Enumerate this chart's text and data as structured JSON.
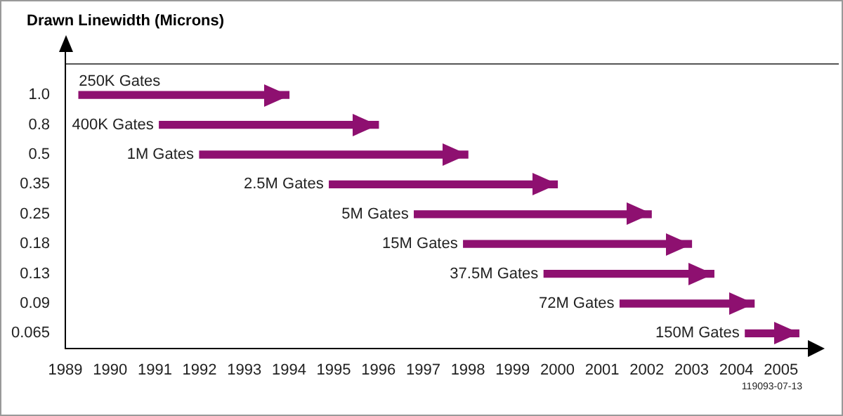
{
  "chart_data": {
    "type": "bar",
    "orientation": "horizontal",
    "ylabel": "Drawn Linewidth (Microns)",
    "categories": [
      "1.0",
      "0.8",
      "0.5",
      "0.35",
      "0.25",
      "0.18",
      "0.13",
      "0.09",
      "0.065"
    ],
    "base": [
      1989.3,
      1991.1,
      1992.0,
      1994.9,
      1996.8,
      1997.9,
      1999.7,
      2001.4,
      2004.2
    ],
    "values": [
      4.7,
      4.9,
      6.0,
      5.1,
      5.3,
      5.1,
      3.8,
      3.0,
      1.2
    ],
    "color": "#8e1070",
    "xlim": [
      1989,
      2005.6
    ],
    "xticks": [
      1989,
      1990,
      1991,
      1992,
      1993,
      1994,
      1995,
      1996,
      1997,
      1998,
      1999,
      2000,
      2001,
      2002,
      2003,
      2004,
      2005
    ],
    "grid": false,
    "legend": false,
    "annotations": [
      {
        "text": "250K Gates",
        "x": 1989.3,
        "y": "1.0"
      },
      {
        "text": "400K Gates",
        "x": 1991.1,
        "y": "0.8"
      },
      {
        "text": "1M Gates",
        "x": 1992.0,
        "y": "0.5"
      },
      {
        "text": "2.5M Gates",
        "x": 1994.9,
        "y": "0.35"
      },
      {
        "text": "5M Gates",
        "x": 1996.8,
        "y": "0.25"
      },
      {
        "text": "15M Gates",
        "x": 1997.9,
        "y": "0.18"
      },
      {
        "text": "37.5M Gates",
        "x": 1999.7,
        "y": "0.13"
      },
      {
        "text": "72M Gates",
        "x": 2001.4,
        "y": "0.09"
      },
      {
        "text": "150M Gates",
        "x": 2004.2,
        "y": "0.065"
      },
      "119093-07-13"
    ]
  }
}
